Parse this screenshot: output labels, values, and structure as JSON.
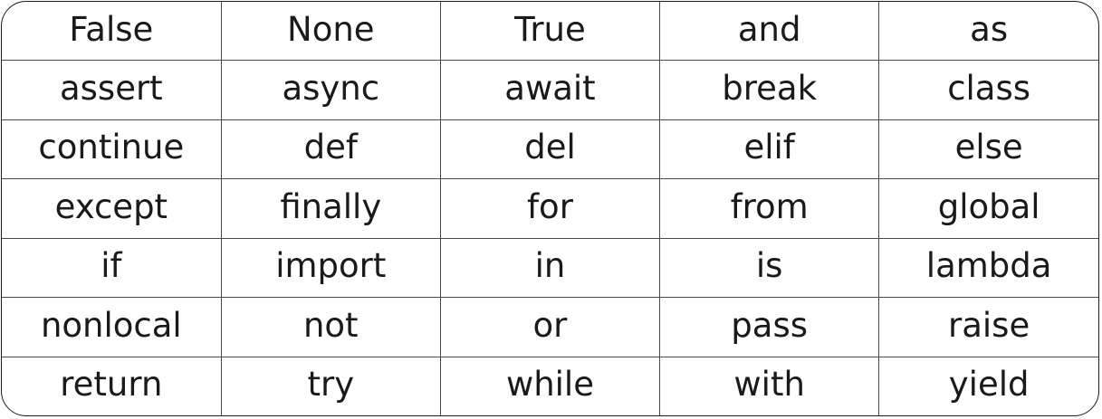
{
  "keywords": {
    "rows": [
      [
        "False",
        "None",
        "True",
        "and",
        "as"
      ],
      [
        "assert",
        "async",
        "await",
        "break",
        "class"
      ],
      [
        "continue",
        "def",
        "del",
        "elif",
        "else"
      ],
      [
        "except",
        "finally",
        "for",
        "from",
        "global"
      ],
      [
        "if",
        "import",
        "in",
        "is",
        "lambda"
      ],
      [
        "nonlocal",
        "not",
        "or",
        "pass",
        "raise"
      ],
      [
        "return",
        "try",
        "while",
        "with",
        "yield"
      ]
    ]
  }
}
